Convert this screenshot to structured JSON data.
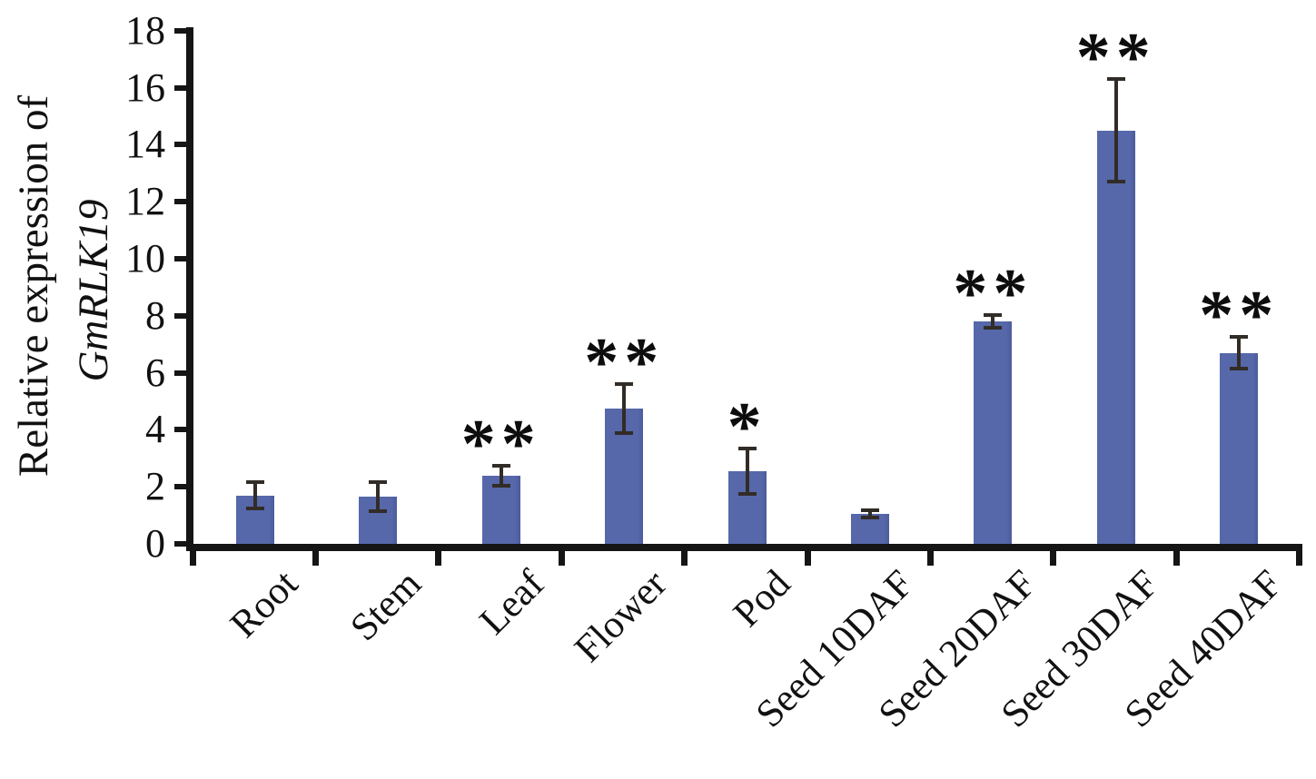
{
  "chart_data": {
    "type": "bar",
    "title": "",
    "ylabel_line1": "Relative expression of",
    "ylabel_line2": "GmRLK19",
    "xlabel": "",
    "categories": [
      "Root",
      "Stem",
      "Leaf",
      "Flower",
      "Pod",
      "Seed 10DAF",
      "Seed 20DAF",
      "Seed 30DAF",
      "Seed 40DAF"
    ],
    "values": [
      1.7,
      1.65,
      2.4,
      4.75,
      2.55,
      1.05,
      7.8,
      14.5,
      6.7
    ],
    "errors": [
      0.45,
      0.5,
      0.35,
      0.85,
      0.8,
      0.12,
      0.22,
      1.8,
      0.55
    ],
    "significance": [
      "",
      "",
      "**",
      "**",
      "*",
      "",
      "**",
      "**",
      "**"
    ],
    "ylim": [
      0,
      18
    ],
    "yticks": [
      0,
      2,
      4,
      6,
      8,
      10,
      12,
      14,
      16,
      18
    ],
    "grid": false,
    "legend_position": "none",
    "colors": {
      "bar_fill": "#5668aa",
      "bar_edge": "#4c5c9c",
      "error_bar": "#322c26",
      "axis": "#151515",
      "text": "#111111",
      "background": "#ffffff"
    }
  }
}
